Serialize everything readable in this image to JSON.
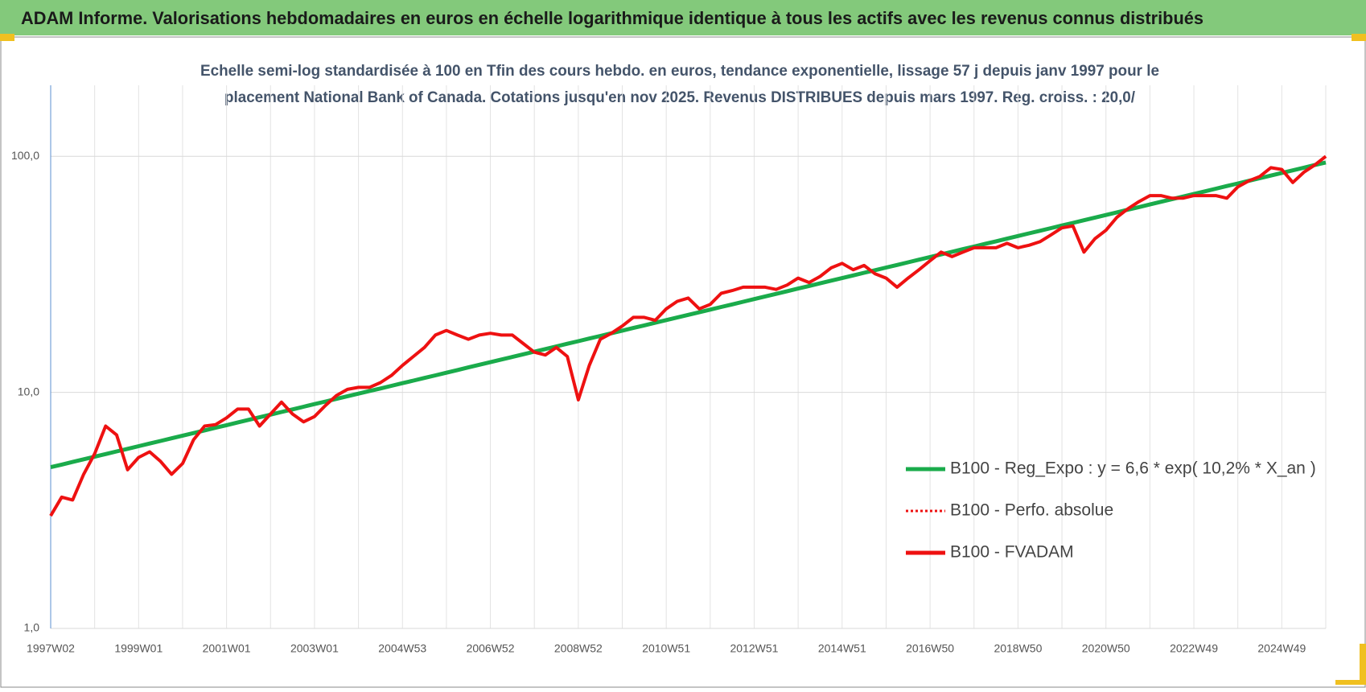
{
  "chart_data": {
    "type": "line",
    "title": "ADAM Informe. Valorisations hebdomadaires en euros en échelle logarithmique identique à tous les actifs avec les revenus connus distribués",
    "subtitle": [
      "Echelle semi-log standardisée à 100 en Tfin des cours hebdo. en euros, tendance exponentielle, lissage 57 j depuis janv 1997 pour le",
      "placement National Bank of Canada. Cotations jusqu'en nov 2025.  Revenus DISTRIBUES depuis mars 1997.  Reg. croiss. : 20,0/"
    ],
    "categories": [
      "1997W02",
      null,
      null,
      null,
      null,
      null,
      null,
      null,
      "1999W01",
      null,
      null,
      null,
      null,
      null,
      null,
      null,
      "2001W01",
      null,
      null,
      null,
      null,
      null,
      null,
      null,
      "2003W01",
      null,
      null,
      null,
      null,
      null,
      null,
      null,
      "2004W53",
      null,
      null,
      null,
      null,
      null,
      null,
      null,
      "2006W52",
      null,
      null,
      null,
      null,
      null,
      null,
      null,
      "2008W52",
      null,
      null,
      null,
      null,
      null,
      null,
      null,
      "2010W51",
      null,
      null,
      null,
      null,
      null,
      null,
      null,
      "2012W51",
      null,
      null,
      null,
      null,
      null,
      null,
      null,
      "2014W51",
      null,
      null,
      null,
      null,
      null,
      null,
      null,
      "2016W50",
      null,
      null,
      null,
      null,
      null,
      null,
      null,
      "2018W50",
      null,
      null,
      null,
      null,
      null,
      null,
      null,
      "2020W50",
      null,
      null,
      null,
      null,
      null,
      null,
      null,
      "2022W49",
      null,
      null,
      null,
      null,
      null,
      null,
      null,
      "2024W49",
      null,
      null,
      null,
      null
    ],
    "series": [
      {
        "name": "B100 - Reg_Expo : y = 6,6 * exp( 10,2% *  X_an )",
        "color": "#1aab4b",
        "style": "solid",
        "values": [
          4.82,
          4.945,
          5.074,
          5.205,
          5.341,
          5.48,
          5.622,
          5.768,
          5.918,
          6.072,
          6.229,
          6.391,
          6.557,
          6.727,
          6.902,
          7.081,
          7.265,
          7.454,
          7.647,
          7.846,
          8.05,
          8.259,
          8.473,
          8.693,
          8.919,
          9.15,
          9.388,
          9.632,
          9.882,
          10.14,
          10.39,
          10.66,
          10.94,
          11.22,
          11.51,
          11.81,
          12.12,
          12.43,
          12.76,
          13.09,
          13.43,
          13.78,
          14.13,
          14.5,
          14.88,
          15.26,
          15.66,
          16.07,
          16.48,
          16.91,
          17.35,
          17.8,
          18.26,
          18.74,
          19.22,
          19.72,
          20.24,
          20.76,
          21.3,
          21.85,
          22.42,
          23,
          23.6,
          24.21,
          24.84,
          25.49,
          26.15,
          26.83,
          27.53,
          28.24,
          28.98,
          29.73,
          30.5,
          31.29,
          32.11,
          32.94,
          33.8,
          34.67,
          35.57,
          36.5,
          37.45,
          38.42,
          39.42,
          40.44,
          41.49,
          42.57,
          43.67,
          44.81,
          45.97,
          47.17,
          48.39,
          49.65,
          50.94,
          52.26,
          53.62,
          55.01,
          56.44,
          57.9,
          59.41,
          60.95,
          62.53,
          64.16,
          65.82,
          67.53,
          69.29,
          71.09,
          72.93,
          74.83,
          76.77,
          78.76,
          80.81,
          82.91,
          85.06,
          87.27,
          89.53,
          91.86,
          94.24
        ]
      },
      {
        "name": "B100 - Perfo. absolue",
        "color": "#ee1111",
        "style": "dotted",
        "values": [
          3.0,
          3.6,
          3.5,
          4.5,
          5.5,
          7.2,
          6.6,
          4.7,
          5.3,
          5.6,
          5.1,
          4.5,
          5.0,
          6.3,
          7.2,
          7.3,
          7.8,
          8.5,
          8.5,
          7.2,
          8.1,
          9.1,
          8.1,
          7.5,
          7.9,
          8.8,
          9.7,
          10.3,
          10.5,
          10.5,
          11.0,
          11.8,
          13.0,
          14.2,
          15.5,
          17.5,
          18.3,
          17.5,
          16.8,
          17.5,
          17.8,
          17.5,
          17.5,
          16.1,
          14.8,
          14.4,
          15.5,
          14.2,
          9.3,
          13.0,
          16.8,
          17.8,
          19.1,
          20.8,
          20.8,
          20.2,
          22.6,
          24.3,
          25.1,
          22.6,
          23.6,
          26.3,
          27.0,
          27.9,
          27.9,
          27.9,
          27.3,
          28.5,
          30.5,
          29.2,
          31.0,
          33.7,
          35.2,
          33.1,
          34.5,
          31.8,
          30.5,
          27.9,
          30.5,
          33.1,
          36.1,
          39.3,
          37.6,
          39.3,
          41.0,
          41.0,
          41.0,
          42.8,
          41.0,
          42.0,
          43.5,
          46.5,
          49.8,
          50.7,
          39.3,
          44.8,
          48.6,
          55.2,
          60.0,
          64.3,
          68.2,
          68.2,
          66.5,
          66.5,
          68.2,
          68.2,
          68.2,
          66.5,
          74.3,
          78.8,
          82.2,
          89.5,
          88.0,
          77.5,
          85.6,
          91.9,
          100
        ]
      },
      {
        "name": "B100 - FVADAM",
        "color": "#ee1111",
        "style": "solid",
        "values": [
          3.0,
          3.6,
          3.5,
          4.5,
          5.5,
          7.2,
          6.6,
          4.7,
          5.3,
          5.6,
          5.1,
          4.5,
          5.0,
          6.3,
          7.2,
          7.3,
          7.8,
          8.5,
          8.5,
          7.2,
          8.1,
          9.1,
          8.1,
          7.5,
          7.9,
          8.8,
          9.7,
          10.3,
          10.5,
          10.5,
          11.0,
          11.8,
          13.0,
          14.2,
          15.5,
          17.5,
          18.3,
          17.5,
          16.8,
          17.5,
          17.8,
          17.5,
          17.5,
          16.1,
          14.8,
          14.4,
          15.5,
          14.2,
          9.3,
          13.0,
          16.8,
          17.8,
          19.1,
          20.8,
          20.8,
          20.2,
          22.6,
          24.3,
          25.1,
          22.6,
          23.6,
          26.3,
          27.0,
          27.9,
          27.9,
          27.9,
          27.3,
          28.5,
          30.5,
          29.2,
          31.0,
          33.7,
          35.2,
          33.1,
          34.5,
          31.8,
          30.5,
          27.9,
          30.5,
          33.1,
          36.1,
          39.3,
          37.6,
          39.3,
          41.0,
          41.0,
          41.0,
          42.8,
          41.0,
          42.0,
          43.5,
          46.5,
          49.8,
          50.7,
          39.3,
          44.8,
          48.6,
          55.2,
          60.0,
          64.3,
          68.2,
          68.2,
          66.5,
          66.5,
          68.2,
          68.2,
          68.2,
          66.5,
          74.3,
          78.8,
          82.2,
          89.5,
          88.0,
          77.5,
          85.6,
          91.9,
          100
        ]
      }
    ],
    "ylim": [
      1,
      200
    ],
    "log_y": true,
    "yticks": [
      {
        "value": 1,
        "label": "1,0"
      },
      {
        "value": 10,
        "label": "10,0"
      },
      {
        "value": 100,
        "label": "100,0"
      }
    ],
    "grid": true,
    "legend": "right"
  }
}
